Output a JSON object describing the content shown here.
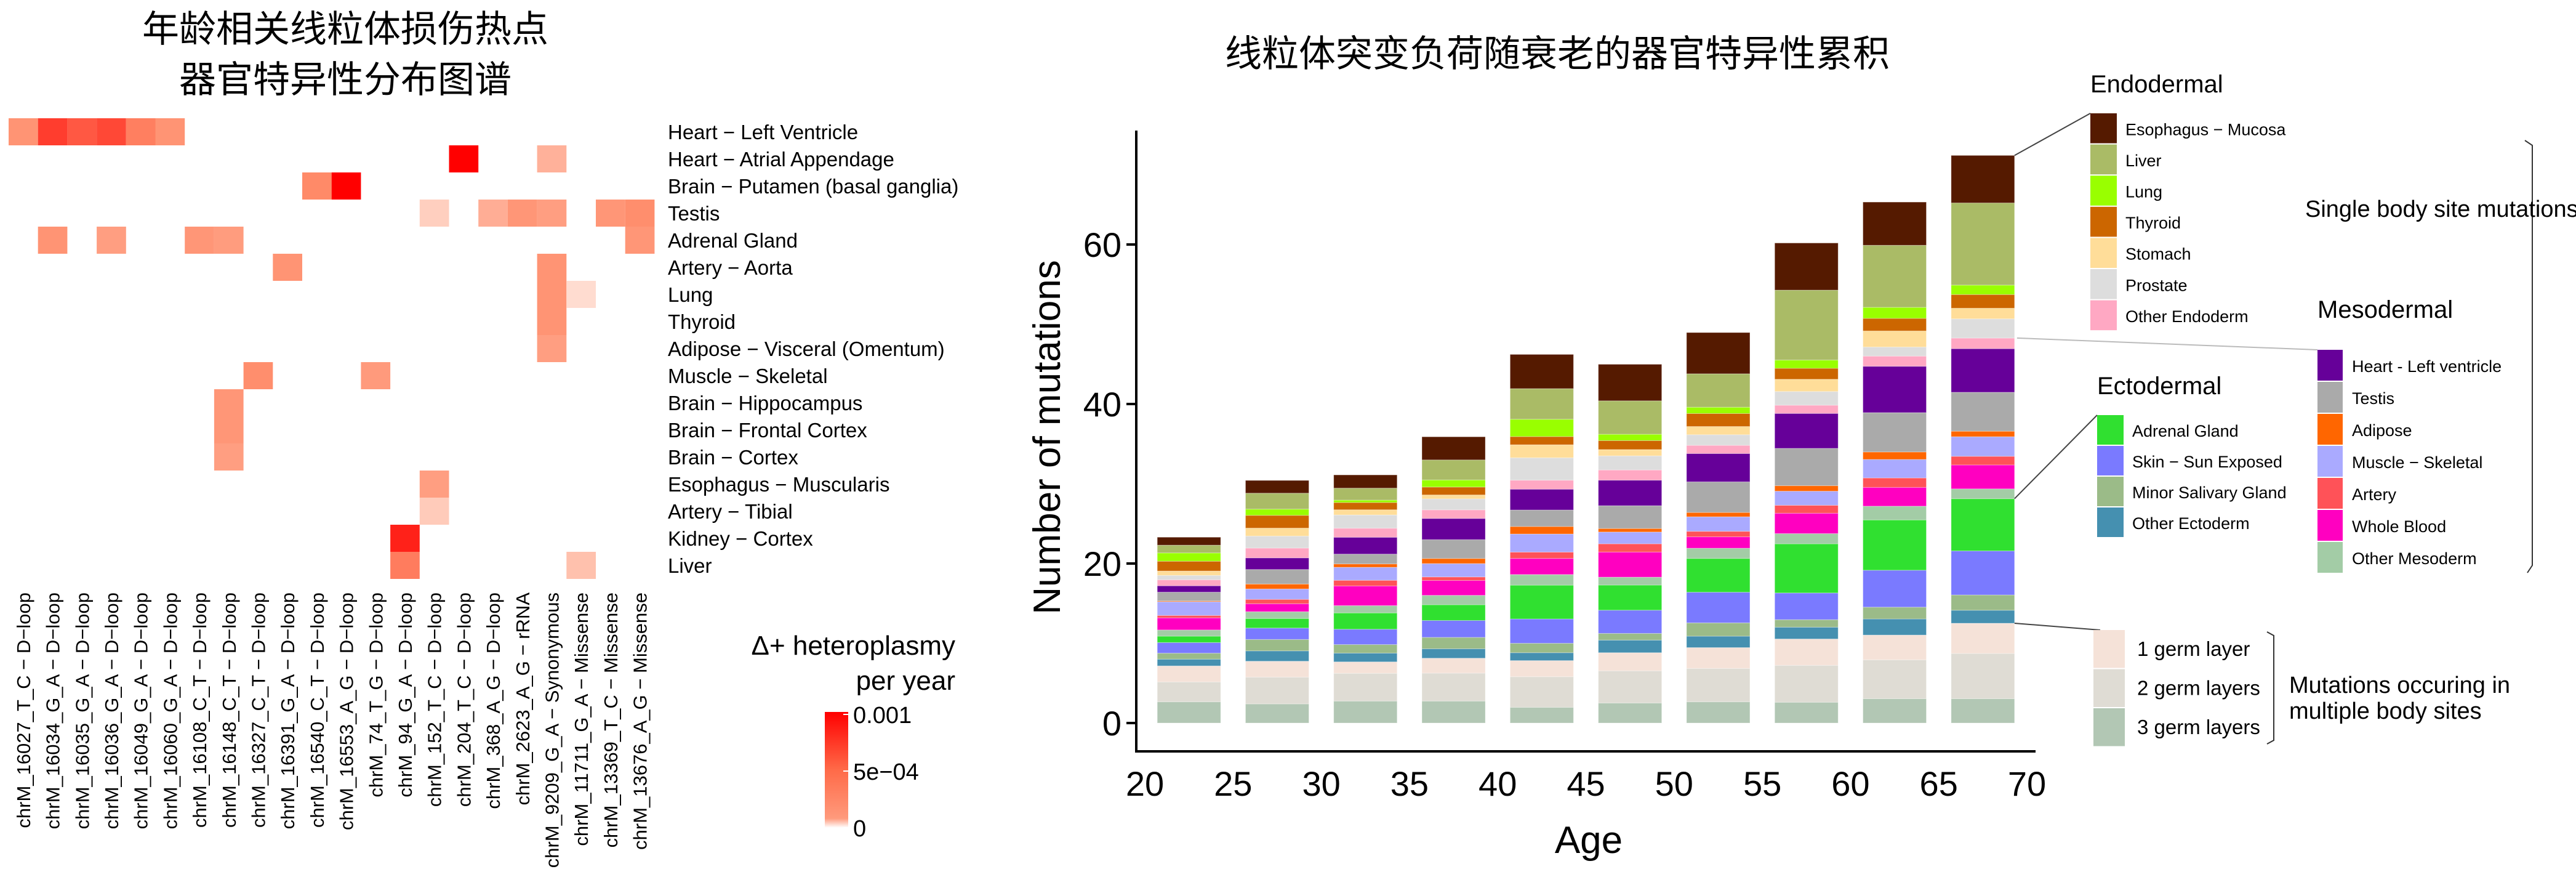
{
  "chart_data": [
    {
      "type": "heatmap",
      "title_lines": [
        "年龄相关线粒体损伤热点",
        "器官特异性分布图谱"
      ],
      "rows": [
        "Heart − Left Ventricle",
        "Heart − Atrial Appendage",
        "Brain − Putamen (basal ganglia)",
        "Testis",
        "Adrenal Gland",
        "Artery − Aorta",
        "Lung",
        "Thyroid",
        "Adipose − Visceral (Omentum)",
        "Muscle − Skeletal",
        "Brain − Hippocampus",
        "Brain − Frontal Cortex",
        "Brain − Cortex",
        "Esophagus − Muscularis",
        "Artery − Tibial",
        "Kidney − Cortex",
        "Liver"
      ],
      "columns": [
        "chrM_16027_T_C − D−loop",
        "chrM_16034_G_A − D−loop",
        "chrM_16035_G_A − D−loop",
        "chrM_16036_G_A − D−loop",
        "chrM_16049_G_A − D−loop",
        "chrM_16060_G_A − D−loop",
        "chrM_16108_C_T − D−loop",
        "chrM_16148_C_T − D−loop",
        "chrM_16327_C_T − D−loop",
        "chrM_16391_G_A − D−loop",
        "chrM_16540_C_T − D−loop",
        "chrM_16553_A_G − D−loop",
        "chrM_74_T_G − D−loop",
        "chrM_94_G_A − D−loop",
        "chrM_152_T_C − D−loop",
        "chrM_204_T_C − D−loop",
        "chrM_368_A_G − D−loop",
        "chrM_2623_A_G − rRNA",
        "chrM_9209_G_A − Synonymous",
        "chrM_11711_G_A − Missense",
        "chrM_13369_T_C − Missense",
        "chrM_13676_A_G − Missense"
      ],
      "cells": [
        {
          "row": 0,
          "col": 0,
          "value": 0.00045
        },
        {
          "row": 0,
          "col": 1,
          "value": 0.00078
        },
        {
          "row": 0,
          "col": 2,
          "value": 0.00068
        },
        {
          "row": 0,
          "col": 3,
          "value": 0.00074
        },
        {
          "row": 0,
          "col": 4,
          "value": 0.00054
        },
        {
          "row": 0,
          "col": 5,
          "value": 0.00045
        },
        {
          "row": 1,
          "col": 15,
          "value": 0.001
        },
        {
          "row": 1,
          "col": 18,
          "value": 0.0003
        },
        {
          "row": 2,
          "col": 10,
          "value": 0.0005
        },
        {
          "row": 2,
          "col": 11,
          "value": 0.001
        },
        {
          "row": 3,
          "col": 14,
          "value": 0.00015
        },
        {
          "row": 3,
          "col": 16,
          "value": 0.00032
        },
        {
          "row": 3,
          "col": 17,
          "value": 0.00044
        },
        {
          "row": 3,
          "col": 18,
          "value": 0.0004
        },
        {
          "row": 3,
          "col": 20,
          "value": 0.00044
        },
        {
          "row": 3,
          "col": 21,
          "value": 0.00048
        },
        {
          "row": 4,
          "col": 1,
          "value": 0.00045
        },
        {
          "row": 4,
          "col": 3,
          "value": 0.0004
        },
        {
          "row": 4,
          "col": 6,
          "value": 0.00044
        },
        {
          "row": 4,
          "col": 7,
          "value": 0.00041
        },
        {
          "row": 4,
          "col": 21,
          "value": 0.00044
        },
        {
          "row": 5,
          "col": 9,
          "value": 0.00045
        },
        {
          "row": 5,
          "col": 18,
          "value": 0.00045
        },
        {
          "row": 6,
          "col": 18,
          "value": 0.00045
        },
        {
          "row": 6,
          "col": 19,
          "value": 8e-05
        },
        {
          "row": 7,
          "col": 18,
          "value": 0.00045
        },
        {
          "row": 8,
          "col": 18,
          "value": 0.0004
        },
        {
          "row": 9,
          "col": 8,
          "value": 0.00048
        },
        {
          "row": 9,
          "col": 12,
          "value": 0.00042
        },
        {
          "row": 10,
          "col": 7,
          "value": 0.00044
        },
        {
          "row": 11,
          "col": 7,
          "value": 0.00044
        },
        {
          "row": 12,
          "col": 7,
          "value": 0.0004
        },
        {
          "row": 13,
          "col": 14,
          "value": 0.0004
        },
        {
          "row": 14,
          "col": 14,
          "value": 0.00017
        },
        {
          "row": 15,
          "col": 13,
          "value": 0.00088
        },
        {
          "row": 16,
          "col": 13,
          "value": 0.00055
        },
        {
          "row": 16,
          "col": 19,
          "value": 0.00022
        }
      ],
      "colorbar": {
        "title_lines": [
          "Δ+ heteroplasmy",
          "per year"
        ],
        "min": 0,
        "max": 0.001,
        "ticks": [
          {
            "value": 0.001,
            "label": "0.001"
          },
          {
            "value": 0.0005,
            "label": "5e−04"
          },
          {
            "value": 0,
            "label": "0"
          }
        ],
        "low_color": "#fff5f0",
        "mid_color": "#ff8a68",
        "high_color": "#ff0000"
      }
    },
    {
      "type": "bar",
      "stacked": true,
      "title": "线粒体突变负荷随衰老的器官特异性累积",
      "xlabel": "Age",
      "ylabel": "Number of mutations",
      "xlim": [
        20,
        70
      ],
      "ylim": [
        0,
        75
      ],
      "xticks": [
        20,
        25,
        30,
        35,
        40,
        45,
        50,
        55,
        60,
        65,
        70
      ],
      "yticks": [
        0,
        20,
        40,
        60
      ],
      "bin_width": 5,
      "x": [
        22.5,
        27.5,
        32.5,
        37.5,
        42.5,
        47.5,
        52.5,
        57.5,
        62.5,
        67.5
      ],
      "series": [
        {
          "name": "3 germ layers",
          "group": "multi",
          "color": "#b2c7b4",
          "values": [
            2.66,
            2.4,
            2.76,
            2.76,
            1.97,
            2.51,
            2.66,
            2.61,
            3.05,
            3.05
          ]
        },
        {
          "name": "2 germ layers",
          "group": "multi",
          "color": "#dfdcd4",
          "values": [
            2.5,
            3.35,
            3.48,
            3.5,
            3.84,
            4.04,
            4.19,
            4.63,
            4.88,
            5.67
          ]
        },
        {
          "name": "1 germ layer",
          "group": "multi",
          "color": "#f5e2d8",
          "values": [
            2.0,
            2.0,
            1.43,
            1.87,
            2.02,
            2.27,
            2.61,
            3.3,
            3.1,
            3.79
          ]
        },
        {
          "name": "Other Ectoderm",
          "group": "ecto",
          "color": "#4590b0",
          "values": [
            0.85,
            1.3,
            1.1,
            1.18,
            0.99,
            1.58,
            1.43,
            1.48,
            2.02,
            1.63
          ]
        },
        {
          "name": "Minor Salivary Gland",
          "group": "ecto",
          "color": "#9bbb88",
          "values": [
            0.75,
            1.43,
            1.07,
            1.43,
            1.18,
            0.84,
            1.67,
            0.94,
            1.48,
            1.92
          ]
        },
        {
          "name": "Skin − Sun Exposed",
          "group": "ecto",
          "color": "#7a7aff",
          "values": [
            1.33,
            1.43,
            1.92,
            2.12,
            3.05,
            2.91,
            3.84,
            3.35,
            4.63,
            5.52
          ]
        },
        {
          "name": "Adrenal Gland",
          "group": "ecto",
          "color": "#30e030",
          "values": [
            0.8,
            1.2,
            2.05,
            1.97,
            4.24,
            3.15,
            4.24,
            6.16,
            6.31,
            6.55
          ]
        },
        {
          "name": "Other Mesoderm",
          "group": "meso",
          "color": "#a3cca6",
          "values": [
            0.78,
            0.85,
            0.91,
            1.18,
            1.33,
            0.99,
            1.28,
            1.28,
            1.72,
            1.23
          ]
        },
        {
          "name": "Whole Blood",
          "group": "meso",
          "color": "#ff00c0",
          "values": [
            1.52,
            1.0,
            2.47,
            1.87,
            2.02,
            3.15,
            1.43,
            2.56,
            2.36,
            3.0
          ]
        },
        {
          "name": "Artery",
          "group": "meso",
          "color": "#ff5258",
          "values": [
            0.3,
            0.55,
            0.71,
            0.44,
            0.79,
            1.03,
            0.69,
            0.99,
            1.18,
            1.08
          ]
        },
        {
          "name": "Muscle − Skeletal",
          "group": "meso",
          "color": "#aaaaff",
          "values": [
            1.72,
            1.3,
            1.63,
            1.67,
            2.27,
            1.48,
            1.82,
            1.77,
            2.32,
            2.46
          ]
        },
        {
          "name": "Adipose",
          "group": "meso",
          "color": "#ff6600",
          "values": [
            0.1,
            0.62,
            0.42,
            0.64,
            0.94,
            0.44,
            0.54,
            0.69,
            0.94,
            0.69
          ]
        },
        {
          "name": "Testis",
          "group": "meso",
          "color": "#aaaaaa",
          "values": [
            1.1,
            1.82,
            1.23,
            2.36,
            2.07,
            2.86,
            3.84,
            4.68,
            4.93,
            4.88
          ]
        },
        {
          "name": "Heart − Left ventricle",
          "group": "meso",
          "color": "#660099",
          "values": [
            0.8,
            1.46,
            2.11,
            2.66,
            2.61,
            3.2,
            3.55,
            4.38,
            5.81,
            5.47
          ]
        },
        {
          "name": "Other Endoderm",
          "group": "endo",
          "color": "#ffa8c3",
          "values": [
            0.75,
            1.23,
            1.14,
            1.08,
            1.13,
            1.28,
            1.03,
            1.03,
            1.28,
            1.33
          ]
        },
        {
          "name": "Prostate",
          "group": "endo",
          "color": "#dddddd",
          "values": [
            0.55,
            1.5,
            1.66,
            1.38,
            2.81,
            1.77,
            1.33,
            1.72,
            1.13,
            2.41
          ]
        },
        {
          "name": "Stomach",
          "group": "endo",
          "color": "#ffdd99",
          "values": [
            0.55,
            1.0,
            0.65,
            0.49,
            1.63,
            0.79,
            1.03,
            1.53,
            2.02,
            1.33
          ]
        },
        {
          "name": "Thyroid",
          "group": "endo",
          "color": "#cc6600",
          "values": [
            1.23,
            1.6,
            0.91,
            0.99,
            1.03,
            1.13,
            1.63,
            1.38,
            1.58,
            1.72
          ]
        },
        {
          "name": "Lung",
          "group": "endo",
          "color": "#99ff00",
          "values": [
            1.04,
            0.78,
            0.3,
            0.89,
            2.17,
            0.79,
            0.79,
            1.03,
            1.38,
            1.18
          ]
        },
        {
          "name": "Liver",
          "group": "endo",
          "color": "#aabb66",
          "values": [
            0.97,
            2.0,
            1.5,
            2.51,
            3.84,
            4.19,
            4.19,
            8.77,
            7.78,
            10.3
          ]
        },
        {
          "name": "Esophagus − Mucosa",
          "group": "endo",
          "color": "#551a00",
          "values": [
            1.0,
            1.6,
            1.66,
            2.9,
            4.29,
            4.58,
            5.17,
            5.91,
            5.42,
            5.96
          ]
        }
      ],
      "legends": {
        "endodermal": {
          "heading": "Endodermal",
          "items": [
            "Esophagus − Mucosa",
            "Liver",
            "Lung",
            "Thyroid",
            "Stomach",
            "Prostate",
            "Other Endoderm"
          ]
        },
        "ectodermal": {
          "heading": "Ectodermal",
          "items": [
            "Adrenal Gland",
            "Skin − Sun Exposed",
            "Minor Salivary Gland",
            "Other Ectoderm"
          ]
        },
        "mesodermal": {
          "heading": "Mesodermal",
          "items": [
            "Heart - Left ventricle",
            "Testis",
            "Adipose",
            "Muscle − Skeletal",
            "Artery",
            "Whole Blood",
            "Other Mesoderm"
          ]
        },
        "germ": {
          "items": [
            "1 germ layer",
            "2 germ layers",
            "3 germ layers"
          ]
        },
        "single_site_label": "Single body site mutations",
        "multi_site_label_lines": [
          "Mutations occuring in",
          "multiple body sites"
        ]
      }
    }
  ]
}
